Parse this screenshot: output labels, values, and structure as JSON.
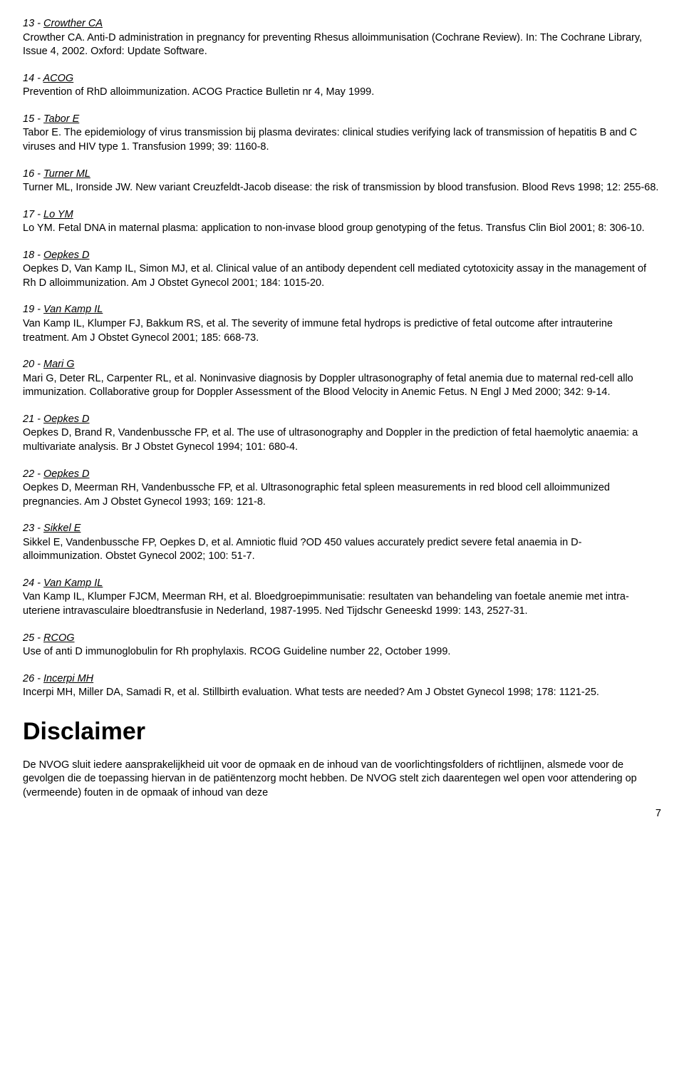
{
  "references": [
    {
      "num": "13",
      "author": "Crowther CA",
      "text": "Crowther CA. Anti-D administration in pregnancy for preventing Rhesus alloimmunisation (Cochrane Review). In: The Cochrane Library, Issue 4, 2002. Oxford: Update Software."
    },
    {
      "num": "14",
      "author": "ACOG",
      "text": "Prevention of RhD alloimmunization. ACOG Practice Bulletin nr 4, May 1999."
    },
    {
      "num": "15",
      "author": "Tabor E",
      "text": "Tabor E. The epidemiology of virus transmission bij plasma devirates: clinical studies verifying lack of transmission of hepatitis B and C viruses and HIV type 1. Transfusion 1999; 39: 1160-8."
    },
    {
      "num": "16",
      "author": "Turner ML",
      "text": "Turner ML, Ironside JW. New variant Creuzfeldt-Jacob disease: the risk of transmission by blood transfusion. Blood Revs 1998; 12: 255-68."
    },
    {
      "num": "17",
      "author": "Lo YM",
      "text": "Lo YM. Fetal DNA in maternal plasma: application to non-invase blood group genotyping of the fetus. Transfus Clin Biol 2001; 8: 306-10."
    },
    {
      "num": "18",
      "author": "Oepkes D",
      "text": "Oepkes D, Van Kamp IL, Simon MJ, et al. Clinical value of an antibody dependent cell mediated cytotoxicity assay in the management of Rh D alloimmunization. Am J Obstet Gynecol 2001; 184: 1015-20."
    },
    {
      "num": "19",
      "author": "Van Kamp IL",
      "text": "Van Kamp IL, Klumper FJ, Bakkum RS, et al. The severity of immune fetal hydrops is predictive of fetal outcome after intrauterine treatment. Am J Obstet Gynecol 2001; 185: 668-73."
    },
    {
      "num": "20",
      "author": "Mari G",
      "text": "Mari G, Deter RL, Carpenter RL, et al. Noninvasive diagnosis by Doppler ultrasonography of fetal anemia due to maternal red-cell allo immunization. Collaborative group for Doppler Assessment of the Blood Velocity in Anemic Fetus. N Engl J Med 2000; 342: 9-14."
    },
    {
      "num": "21",
      "author": "Oepkes D",
      "text": "Oepkes D, Brand R, Vandenbussche FP, et al. The use of ultrasonography and Doppler in the prediction of fetal haemolytic anaemia: a multivariate analysis. Br J Obstet Gynecol 1994; 101: 680-4."
    },
    {
      "num": "22",
      "author": "Oepkes D",
      "text": "Oepkes D, Meerman RH, Vandenbussche FP, et al. Ultrasonographic fetal spleen measurements in red blood cell alloimmunized pregnancies. Am J Obstet Gynecol 1993; 169: 121-8."
    },
    {
      "num": "23",
      "author": "Sikkel E",
      "text": "Sikkel E, Vandenbussche FP, Oepkes D, et al. Amniotic fluid ?OD 450 values accurately predict severe fetal anaemia in D-alloimmunization. Obstet Gynecol 2002; 100: 51-7."
    },
    {
      "num": "24",
      "author": "Van Kamp IL",
      "text": "Van Kamp IL, Klumper FJCM, Meerman RH, et al. Bloedgroepimmunisatie: resultaten van behandeling van foetale anemie met intra-uteriene intravasculaire bloedtransfusie in Nederland, 1987-1995. Ned Tijdschr Geneeskd 1999: 143, 2527-31."
    },
    {
      "num": "25",
      "author": "RCOG",
      "text": "Use of anti D immunoglobulin for Rh prophylaxis. RCOG Guideline number 22, October 1999."
    },
    {
      "num": "26",
      "author": "Incerpi MH",
      "text": "Incerpi MH, Miller DA, Samadi R, et al. Stillbirth evaluation. What tests are needed? Am J Obstet Gynecol 1998; 178: 1121-25."
    }
  ],
  "disclaimer": {
    "heading": "Disclaimer",
    "text": "De NVOG sluit iedere aansprakelijkheid uit voor de opmaak en de inhoud van de voorlichtingsfolders of richtlijnen, alsmede voor de gevolgen die de toepassing hiervan in de patiëntenzorg mocht hebben. De NVOG stelt zich daarentegen wel open voor attendering op (vermeende) fouten in de opmaak of inhoud van deze"
  },
  "page_number": "7"
}
